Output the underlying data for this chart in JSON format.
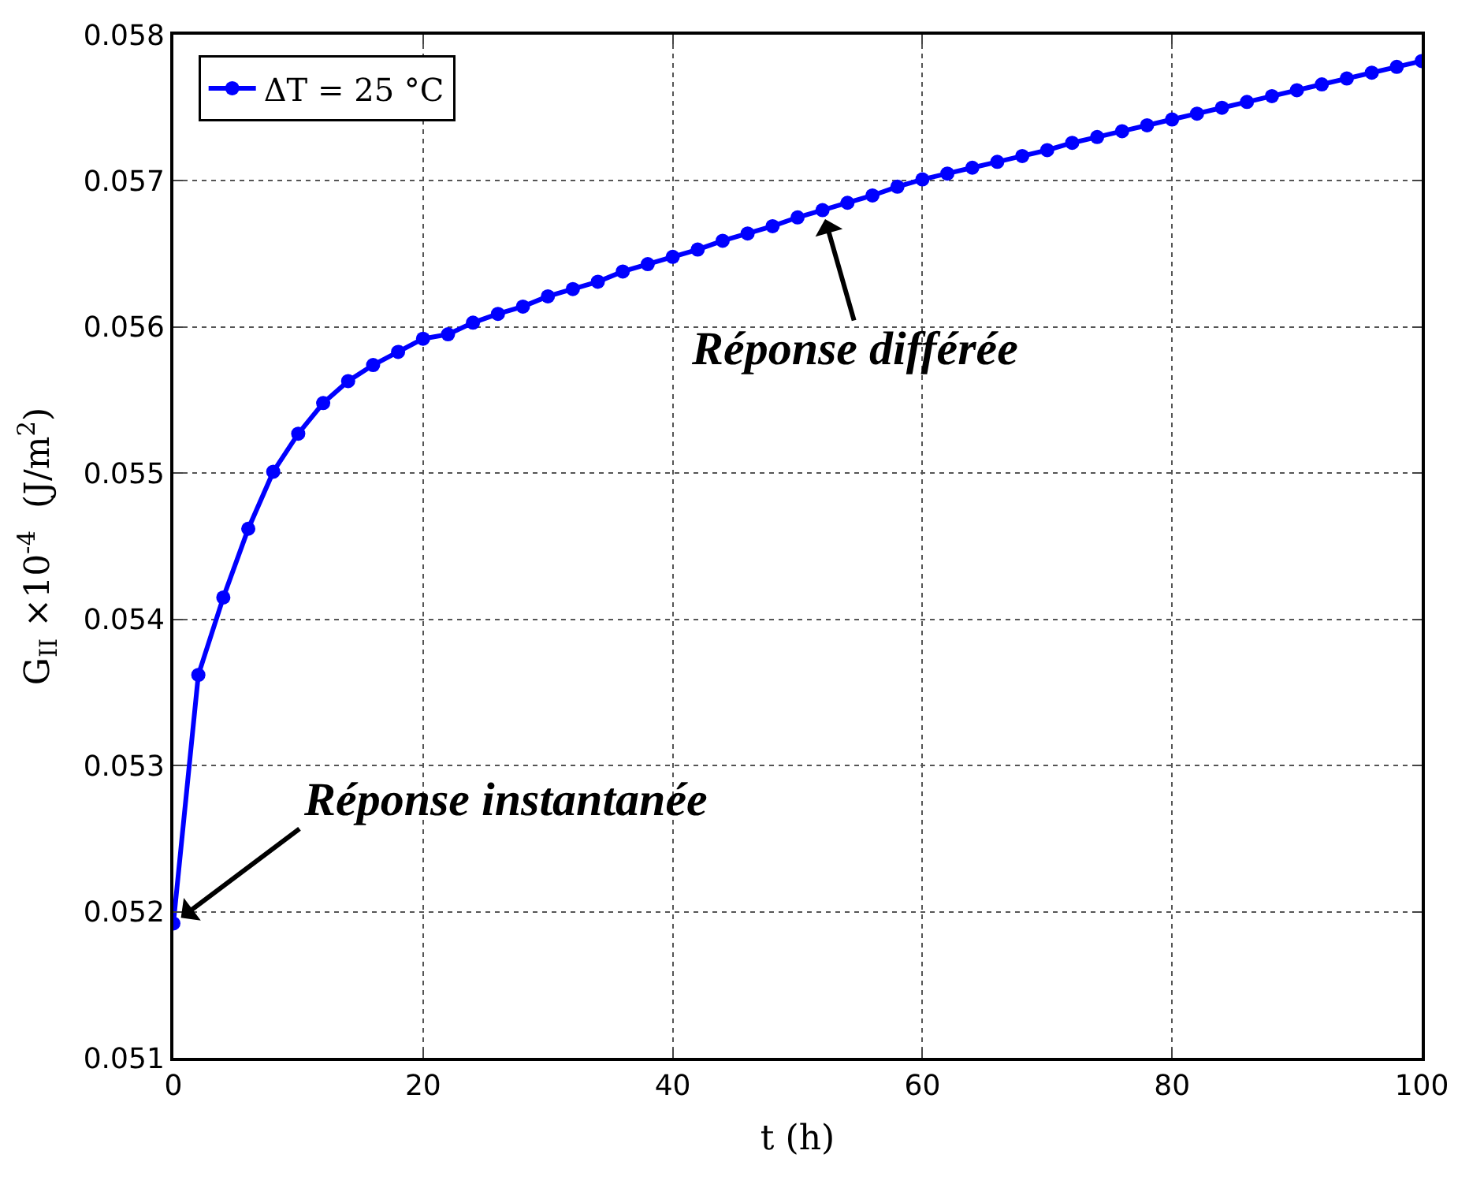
{
  "chart_data": {
    "type": "line",
    "xlabel": "t (h)",
    "ylabel": "G$_{II}$ ×10$^{-4}$  (J/m$^{2}$)",
    "x": [
      0,
      2,
      4,
      6,
      8,
      10,
      12,
      14,
      16,
      18,
      20,
      22,
      24,
      26,
      28,
      30,
      32,
      34,
      36,
      38,
      40,
      42,
      44,
      46,
      48,
      50,
      52,
      54,
      56,
      58,
      60,
      62,
      64,
      66,
      68,
      70,
      72,
      74,
      76,
      78,
      80,
      82,
      84,
      86,
      88,
      90,
      92,
      94,
      96,
      98,
      100
    ],
    "series": [
      {
        "name": "ΔT = 25 °C",
        "color": "#0000ff",
        "values": [
          0.05192,
          0.05362,
          0.05415,
          0.05462,
          0.05501,
          0.05527,
          0.05548,
          0.05563,
          0.05574,
          0.05583,
          0.05592,
          0.05595,
          0.05603,
          0.05609,
          0.05614,
          0.05621,
          0.05626,
          0.05631,
          0.05638,
          0.05643,
          0.05648,
          0.05653,
          0.05659,
          0.05664,
          0.05669,
          0.05675,
          0.0568,
          0.05685,
          0.0569,
          0.05696,
          0.05701,
          0.05705,
          0.05709,
          0.05713,
          0.05717,
          0.05721,
          0.05726,
          0.0573,
          0.05734,
          0.05738,
          0.05742,
          0.05746,
          0.0575,
          0.05754,
          0.05758,
          0.05762,
          0.05766,
          0.0577,
          0.05774,
          0.05778,
          0.05782
        ]
      }
    ],
    "xlim": [
      0,
      100
    ],
    "xticks": [
      0,
      20,
      40,
      60,
      80,
      100
    ],
    "ylim": [
      0.051,
      0.058
    ],
    "yticks": [
      0.051,
      0.052,
      0.053,
      0.054,
      0.055,
      0.056,
      0.057,
      0.058
    ],
    "annotations": [
      {
        "text": "Réponse instantanée",
        "x": 0,
        "y": 0.05192
      },
      {
        "text": "Réponse différée",
        "x": 52,
        "y": 0.0568
      }
    ],
    "grid": true,
    "legend": "top left",
    "marker": "circle",
    "line_style": "solid"
  }
}
